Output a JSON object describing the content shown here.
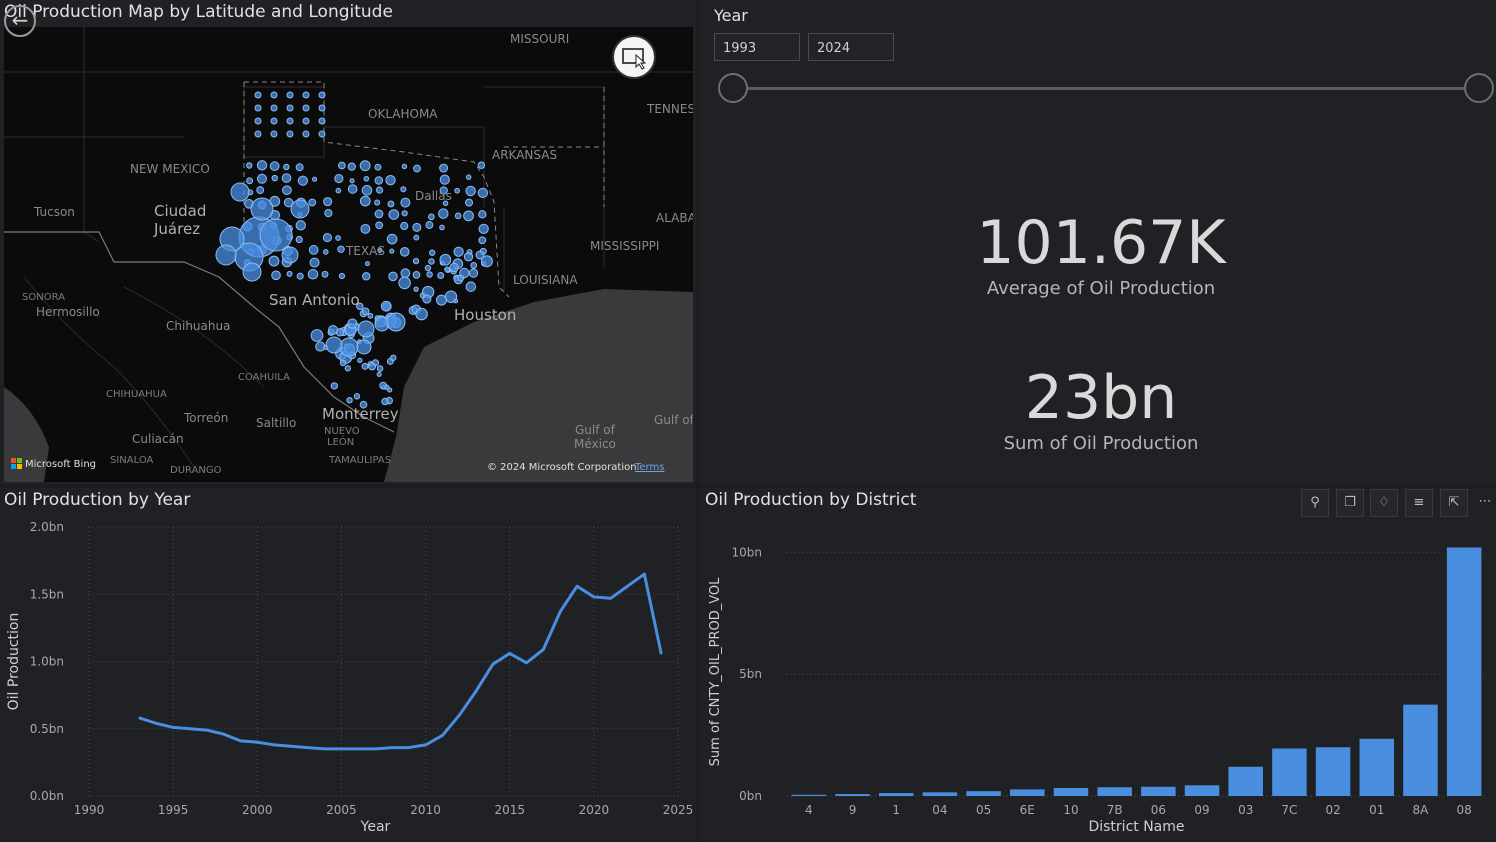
{
  "map": {
    "title": "Oil Production Map by Latitude and Longitude",
    "labels": {
      "missouri": "MISSOURI",
      "oklahoma": "OKLAHOMA",
      "arkansas": "ARKANSAS",
      "tennessee": "TENNES",
      "new_mexico": "NEW MEXICO",
      "tucson": "Tucson",
      "ciudad": "Ciudad",
      "juarez": "Juárez",
      "dallas": "Dallas",
      "alabama": "ALABA",
      "mississippi": "MISSISSIPPI",
      "texas": "TEXAS",
      "louisiana": "LOUISIANA",
      "sonora": "SONORA",
      "hermosillo": "Hermosillo",
      "san_antonio": "San Antonio",
      "chihuahua_city": "Chihuahua",
      "houston": "Houston",
      "coahuila": "COAHUILA",
      "chihuahua_state": "CHIHUAHUA",
      "torreon": "Torreón",
      "saltillo": "Saltillo",
      "monterrey": "Monterrey",
      "culiacan": "Culiacán",
      "nuevo": "NUEVO",
      "leon": "LEÓN",
      "gulf_left": "Gulf of",
      "gulf_of": "Gulf of",
      "mexico": "México",
      "sinaloa": "SINALOA",
      "durango": "DURANGO",
      "tamaulipas": "TAMAULIPAS"
    },
    "attribution": {
      "brand": "Microsoft Bing",
      "copyright": "© 2024 Microsoft Corporation",
      "terms": "Terms"
    },
    "colors": {
      "bubble_fill": "#4a8ee0",
      "bubble_stroke": "#8cbcf2",
      "land": "#0b0b0c",
      "water": "#3a3a3c"
    }
  },
  "slicer": {
    "title": "Year",
    "start": "1993",
    "end": "2024",
    "start_fraction": 0.0,
    "end_fraction": 1.0
  },
  "kpis": {
    "average": {
      "value": "101.67K",
      "label": "Average of Oil Production"
    },
    "sum": {
      "value": "23bn",
      "label": "Sum of Oil Production"
    }
  },
  "line_chart": {
    "title": "Oil Production by Year",
    "chart_data": {
      "type": "line",
      "xlabel": "Year",
      "ylabel": "Oil Production",
      "xlim": [
        1990,
        2025
      ],
      "ylim": [
        0,
        2.0
      ],
      "x_ticks": [
        "1990",
        "1995",
        "2000",
        "2005",
        "2010",
        "2015",
        "2020",
        "2025"
      ],
      "y_ticks": [
        "0.0bn",
        "0.5bn",
        "1.0bn",
        "1.5bn",
        "2.0bn"
      ],
      "grid": true,
      "color": "#4a8ee0",
      "x": [
        1993,
        1994,
        1995,
        1996,
        1997,
        1998,
        1999,
        2000,
        2001,
        2002,
        2003,
        2004,
        2005,
        2006,
        2007,
        2008,
        2009,
        2010,
        2011,
        2012,
        2013,
        2014,
        2015,
        2016,
        2017,
        2018,
        2019,
        2020,
        2021,
        2022,
        2023,
        2024
      ],
      "y": [
        0.58,
        0.54,
        0.51,
        0.5,
        0.49,
        0.46,
        0.41,
        0.4,
        0.38,
        0.37,
        0.36,
        0.35,
        0.35,
        0.35,
        0.35,
        0.36,
        0.36,
        0.38,
        0.45,
        0.6,
        0.78,
        0.98,
        1.06,
        0.99,
        1.09,
        1.37,
        1.56,
        1.48,
        1.47,
        1.56,
        1.65,
        1.06
      ]
    }
  },
  "bar_chart": {
    "title": "Oil Production by District",
    "toolbar": [
      "pin-icon",
      "copy-icon",
      "bell-icon",
      "filter-icon",
      "expand-icon",
      "more-icon"
    ],
    "chart_data": {
      "type": "bar",
      "xlabel": "District Name",
      "ylabel": "Sum of CNTY_OIL_PROD_VOL",
      "ylim": [
        0,
        11
      ],
      "y_ticks": [
        "0bn",
        "5bn",
        "10bn"
      ],
      "grid": true,
      "color": "#4a8ee0",
      "categories": [
        "4",
        "9",
        "1",
        "04",
        "05",
        "6E",
        "10",
        "7B",
        "06",
        "09",
        "03",
        "7C",
        "02",
        "01",
        "8A",
        "08"
      ],
      "values": [
        0.05,
        0.08,
        0.12,
        0.15,
        0.2,
        0.27,
        0.33,
        0.36,
        0.38,
        0.44,
        1.2,
        1.95,
        2.0,
        2.35,
        3.75,
        10.2
      ]
    }
  }
}
